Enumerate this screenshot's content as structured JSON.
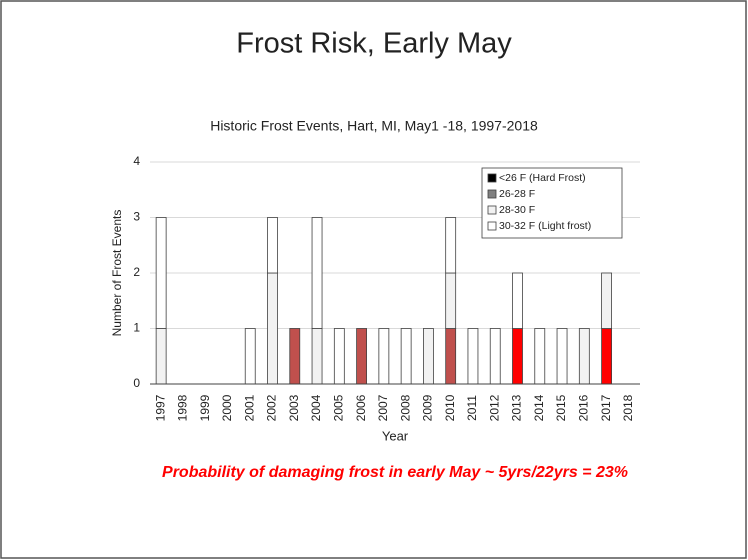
{
  "slide_title": "Frost Risk, Early May",
  "chart_data": {
    "type": "stacked_bar",
    "title": "Historic Frost Events, Hart, MI,  May1 -18, 1997-2018",
    "xlabel": "Year",
    "ylabel": "Number of Frost Events",
    "categories": [
      "1997",
      "1998",
      "1999",
      "2000",
      "2001",
      "2002",
      "2003",
      "2004",
      "2005",
      "2006",
      "2007",
      "2008",
      "2009",
      "2010",
      "2011",
      "2012",
      "2013",
      "2014",
      "2015",
      "2016",
      "2017",
      "2018"
    ],
    "series": [
      {
        "name": "<26 F (Hard Frost)",
        "color": "#000000",
        "values": [
          0,
          0,
          0,
          0,
          0,
          0,
          0,
          0,
          0,
          0,
          0,
          0,
          0,
          0,
          0,
          0,
          0,
          0,
          0,
          0,
          0,
          0
        ]
      },
      {
        "name": "26-28 F",
        "color": "#808080",
        "bar_colors": [
          "#808080",
          "#808080",
          "#808080",
          "#808080",
          "#808080",
          "#808080",
          "#c0504d",
          "#808080",
          "#808080",
          "#c0504d",
          "#808080",
          "#808080",
          "#808080",
          "#c0504d",
          "#808080",
          "#808080",
          "#ff0000",
          "#808080",
          "#808080",
          "#808080",
          "#ff0000",
          "#808080"
        ],
        "values": [
          0,
          0,
          0,
          0,
          0,
          0,
          1,
          0,
          0,
          1,
          0,
          0,
          0,
          1,
          0,
          0,
          1,
          0,
          0,
          0,
          1,
          0
        ]
      },
      {
        "name": "28-30 F",
        "color": "#f2f2f2",
        "values": [
          1,
          0,
          0,
          0,
          0,
          2,
          0,
          1,
          0,
          0,
          0,
          0,
          1,
          1,
          0,
          0,
          0,
          0,
          0,
          1,
          1,
          0
        ]
      },
      {
        "name": "30-32 F (Light frost)",
        "color": "#ffffff",
        "values": [
          2,
          0,
          0,
          0,
          1,
          1,
          0,
          2,
          1,
          0,
          1,
          1,
          0,
          1,
          1,
          1,
          1,
          1,
          1,
          0,
          0,
          0
        ]
      }
    ],
    "ylim": [
      0,
      4
    ],
    "yticks": [
      0,
      1,
      2,
      3,
      4
    ],
    "legend": "upper right"
  },
  "footnote": "Probability of damaging frost in early May ~ 5yrs/22yrs = 23%"
}
